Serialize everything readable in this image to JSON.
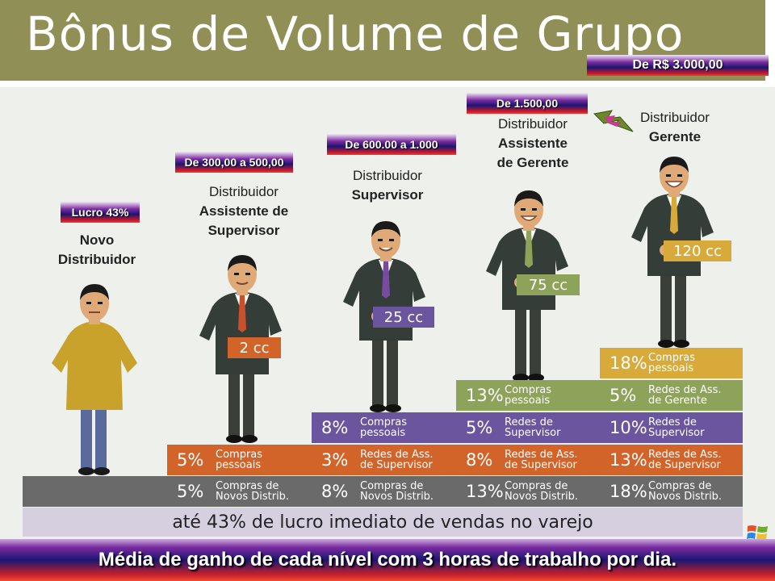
{
  "title": "Bônus de Volume de Grupo",
  "price_tags": [
    {
      "label": "Lucro 43%"
    },
    {
      "label": "De 300,00  a  500,00"
    },
    {
      "label": "De 600.00  a  1.000"
    },
    {
      "label": "De 1.500,00"
    },
    {
      "label": "De R$ 3.000,00"
    }
  ],
  "levels": [
    {
      "line1": "Novo",
      "line2": "Distribuidor",
      "cc": ""
    },
    {
      "line1": "Distribuidor",
      "line2": "Assistente de",
      "line3": "Supervisor",
      "cc": "2 cc"
    },
    {
      "line1": "Distribuidor",
      "line2": "Supervisor",
      "cc": "25 cc"
    },
    {
      "line1": "Distribuidor",
      "line2": "Assistente",
      "line3": "de Gerente",
      "cc": "75 cc"
    },
    {
      "line1": "Distribuidor",
      "line2": "Gerente",
      "cc": "120 cc"
    }
  ],
  "steps": {
    "row1": [
      {
        "pct": "5%",
        "desc": "Compras de\nNovos Distrib."
      },
      {
        "pct": "8%",
        "desc": "Compras de\nNovos Distrib."
      },
      {
        "pct": "13%",
        "desc": "Compras de\nNovos Distrib."
      },
      {
        "pct": "18%",
        "desc": "Compras de\nNovos Distrib."
      }
    ],
    "row2": [
      {
        "pct": "5%",
        "desc": "Compras\npessoais"
      },
      {
        "pct": "3%",
        "desc": "Redes de Ass.\nde Supervisor"
      },
      {
        "pct": "8%",
        "desc": "Redes de Ass.\nde Supervisor"
      },
      {
        "pct": "13%",
        "desc": "Redes de Ass.\nde Supervisor"
      }
    ],
    "row3": [
      {
        "pct": "8%",
        "desc": "Compras\npessoais"
      },
      {
        "pct": "5%",
        "desc": "Redes de\nSupervisor"
      },
      {
        "pct": "10%",
        "desc": "Redes de\nSupervisor"
      }
    ],
    "row4": [
      {
        "pct": "13%",
        "desc": "Compras\npessoais"
      },
      {
        "pct": "5%",
        "desc": "Redes de Ass.\nde Gerente"
      }
    ],
    "row5": [
      {
        "pct": "18%",
        "desc": "Compras\npessoais"
      }
    ]
  },
  "caption": "até 43% de lucro imediato de vendas no varejo",
  "footer": "Média de ganho de cada nível com 3 horas de trabalho por dia.",
  "colors": {
    "title_bar": "#8f8f56",
    "gray": "#6a6a6a",
    "orange": "#d2642a",
    "purple": "#6a559e",
    "green": "#8ea35a",
    "gold": "#d7aa3a",
    "lavender": "#d6cfe0"
  }
}
